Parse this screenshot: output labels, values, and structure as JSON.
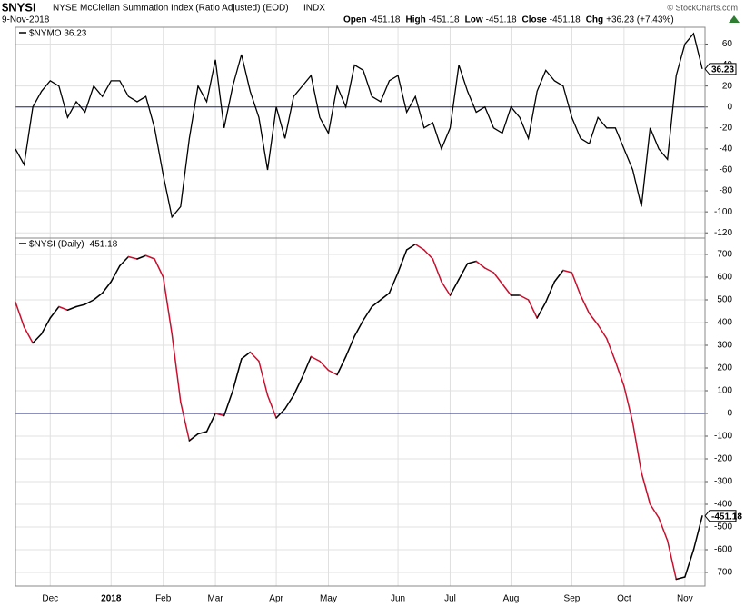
{
  "header": {
    "symbol": "$NYSI",
    "title": "NYSE McClellan Summation Index (Ratio Adjusted) (EOD)",
    "exchange": "INDX",
    "date": "9-Nov-2018",
    "credit": "© StockCharts.com",
    "quote": [
      {
        "label": "Open",
        "value": -451.18
      },
      {
        "label": "High",
        "value": -451.18
      },
      {
        "label": "Low",
        "value": -451.18
      },
      {
        "label": "Close",
        "value": -451.18
      },
      {
        "label": "Chg",
        "value": "+36.23 (+7.43%)"
      }
    ]
  },
  "chart_data": [
    {
      "type": "line",
      "title": "$NYMO 36.23",
      "color": "#000000",
      "zero_color": "#1a237e",
      "ylim": [
        -125,
        76
      ],
      "yticks": [
        -120,
        -100,
        -80,
        -60,
        -40,
        -20,
        0,
        20,
        40,
        60
      ],
      "values": [
        -40,
        -55,
        0,
        15,
        25,
        20,
        -10,
        5,
        -5,
        20,
        10,
        25,
        25,
        10,
        5,
        10,
        -20,
        -65,
        -105,
        -95,
        -30,
        20,
        5,
        45,
        -20,
        20,
        50,
        15,
        -10,
        -60,
        0,
        -30,
        10,
        20,
        30,
        -10,
        -25,
        20,
        0,
        40,
        35,
        10,
        5,
        25,
        30,
        -5,
        10,
        -20,
        -15,
        -40,
        -20,
        40,
        15,
        -5,
        0,
        -20,
        -25,
        0,
        -10,
        -30,
        15,
        35,
        25,
        20,
        -10,
        -30,
        -35,
        -10,
        -20,
        -20,
        -40,
        -60,
        -95,
        -20,
        -40,
        -50,
        30,
        60,
        70,
        36.23
      ]
    },
    {
      "type": "updown-line",
      "title": "$NYSI (Daily) -451.18",
      "up_color": "#000000",
      "down_color": "#c8102e",
      "zero_color": "#1a237e",
      "ylim": [
        -760,
        772
      ],
      "yticks": [
        -700,
        -600,
        -500,
        -400,
        -300,
        -200,
        -100,
        0,
        100,
        200,
        300,
        400,
        500,
        600,
        700
      ],
      "categories": [
        null,
        null,
        null,
        null,
        "Dec",
        null,
        null,
        null,
        null,
        null,
        null,
        "2018",
        null,
        null,
        null,
        null,
        null,
        "Feb",
        null,
        null,
        null,
        null,
        null,
        "Mar",
        null,
        null,
        null,
        null,
        null,
        null,
        "Apr",
        null,
        null,
        null,
        null,
        null,
        "May",
        null,
        null,
        null,
        null,
        null,
        null,
        null,
        "Jun",
        null,
        null,
        null,
        null,
        null,
        "Jul",
        null,
        null,
        null,
        null,
        null,
        null,
        "Aug",
        null,
        null,
        null,
        null,
        null,
        null,
        "Sep",
        null,
        null,
        null,
        null,
        null,
        "Oct",
        null,
        null,
        null,
        null,
        null,
        null,
        "Nov",
        null,
        null
      ],
      "values": [
        490,
        380,
        310,
        350,
        420,
        470,
        455,
        470,
        480,
        500,
        530,
        580,
        650,
        690,
        680,
        695,
        680,
        600,
        350,
        50,
        -120,
        -90,
        -80,
        0,
        -10,
        100,
        240,
        270,
        230,
        80,
        -20,
        20,
        80,
        160,
        250,
        230,
        190,
        170,
        250,
        340,
        410,
        470,
        500,
        530,
        620,
        720,
        745,
        720,
        680,
        580,
        520,
        590,
        660,
        670,
        640,
        620,
        570,
        520,
        520,
        500,
        420,
        490,
        580,
        630,
        620,
        520,
        440,
        390,
        330,
        230,
        120,
        -40,
        -260,
        -400,
        -460,
        -560,
        -730,
        -720,
        -600,
        -451.18
      ]
    }
  ]
}
